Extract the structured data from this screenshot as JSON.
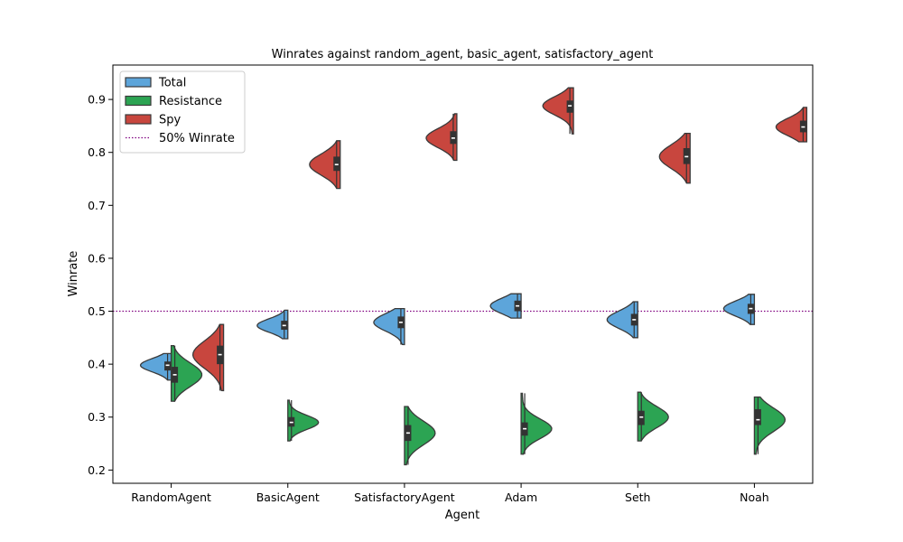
{
  "chart_data": {
    "type": "violin",
    "title": "Winrates against random_agent, basic_agent, satisfactory_agent",
    "xlabel": "Agent",
    "ylabel": "Winrate",
    "ylim": [
      0.175,
      0.965
    ],
    "yticks": [
      0.2,
      0.3,
      0.4,
      0.5,
      0.6,
      0.7,
      0.8,
      0.9
    ],
    "yticklabels": [
      "0.2",
      "0.3",
      "0.4",
      "0.5",
      "0.6",
      "0.7",
      "0.8",
      "0.9"
    ],
    "categories": [
      "RandomAgent",
      "BasicAgent",
      "SatisfactoryAgent",
      "Adam",
      "Seth",
      "Noah"
    ],
    "reference_line": {
      "label": "50% Winrate",
      "y": 0.5,
      "color": "#800080",
      "style": "dotted"
    },
    "legend": {
      "placement": "top-left",
      "entries": [
        "Total",
        "Resistance",
        "Spy",
        "50% Winrate"
      ]
    },
    "series": [
      {
        "name": "Total",
        "color": "#5DA5DA",
        "side": "left",
        "points": [
          {
            "median": 0.398,
            "q1": 0.388,
            "q3": 0.405,
            "min": 0.37,
            "max": 0.42
          },
          {
            "median": 0.473,
            "q1": 0.465,
            "q3": 0.482,
            "min": 0.448,
            "max": 0.502
          },
          {
            "median": 0.479,
            "q1": 0.468,
            "q3": 0.49,
            "min": 0.437,
            "max": 0.505
          },
          {
            "median": 0.51,
            "q1": 0.5,
            "q3": 0.52,
            "min": 0.487,
            "max": 0.533
          },
          {
            "median": 0.484,
            "q1": 0.473,
            "q3": 0.495,
            "min": 0.45,
            "max": 0.518
          },
          {
            "median": 0.505,
            "q1": 0.495,
            "q3": 0.514,
            "min": 0.475,
            "max": 0.532
          }
        ]
      },
      {
        "name": "Resistance",
        "color": "#2CA453",
        "side": "right",
        "points": [
          {
            "median": 0.38,
            "q1": 0.365,
            "q3": 0.395,
            "min": 0.33,
            "max": 0.435
          },
          {
            "median": 0.29,
            "q1": 0.282,
            "q3": 0.3,
            "min": 0.255,
            "max": 0.332
          },
          {
            "median": 0.27,
            "q1": 0.255,
            "q3": 0.285,
            "min": 0.21,
            "max": 0.32
          },
          {
            "median": 0.278,
            "q1": 0.265,
            "q3": 0.29,
            "min": 0.23,
            "max": 0.345
          },
          {
            "median": 0.3,
            "q1": 0.285,
            "q3": 0.312,
            "min": 0.255,
            "max": 0.347
          },
          {
            "median": 0.295,
            "q1": 0.285,
            "q3": 0.315,
            "min": 0.23,
            "max": 0.338
          }
        ]
      },
      {
        "name": "Spy",
        "color": "#C8463E",
        "side": "left",
        "points": [
          {
            "median": 0.418,
            "q1": 0.4,
            "q3": 0.435,
            "min": 0.35,
            "max": 0.475
          },
          {
            "median": 0.777,
            "q1": 0.765,
            "q3": 0.792,
            "min": 0.732,
            "max": 0.822
          },
          {
            "median": 0.827,
            "q1": 0.816,
            "q3": 0.84,
            "min": 0.785,
            "max": 0.873
          },
          {
            "median": 0.888,
            "q1": 0.875,
            "q3": 0.898,
            "min": 0.835,
            "max": 0.922
          },
          {
            "median": 0.792,
            "q1": 0.778,
            "q3": 0.808,
            "min": 0.742,
            "max": 0.836
          },
          {
            "median": 0.848,
            "q1": 0.838,
            "q3": 0.86,
            "min": 0.82,
            "max": 0.885
          }
        ]
      }
    ]
  }
}
